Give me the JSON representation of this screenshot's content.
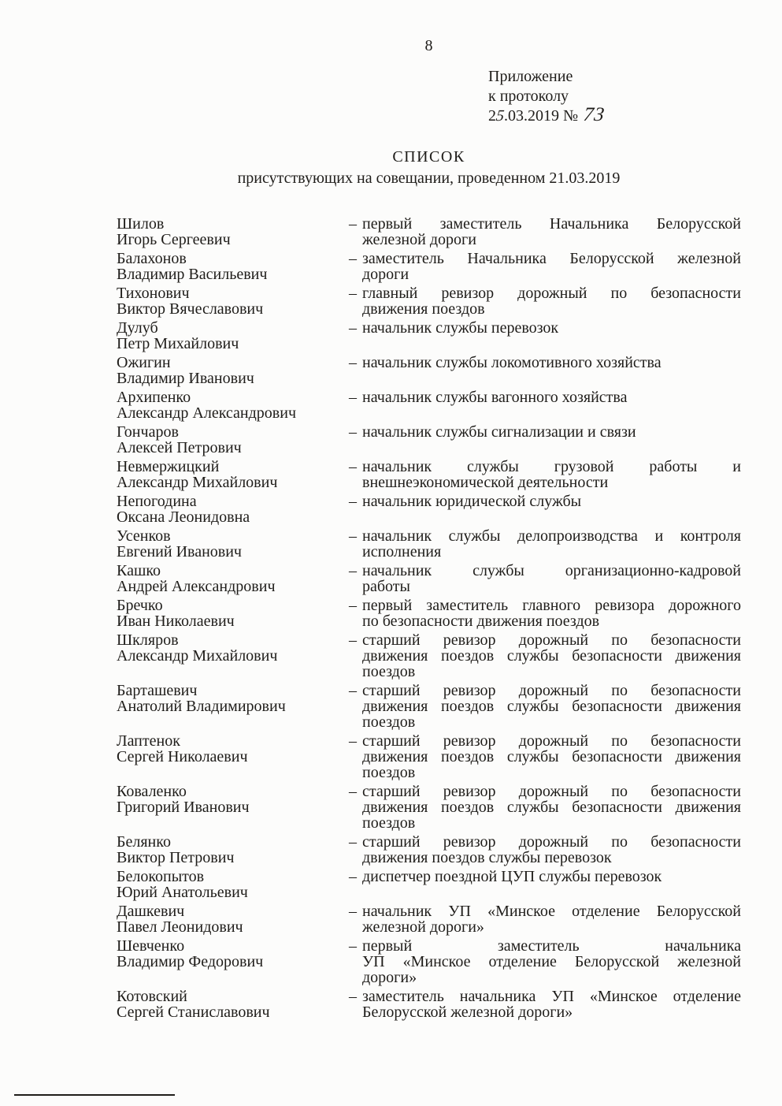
{
  "ui": {
    "paper_color": "#fcfcfb",
    "ink_color": "#1f1d1a",
    "list_dash": "–"
  },
  "page": {
    "number": "8",
    "annotation": {
      "line1": "Приложение",
      "line2": "к протоколу",
      "date_prefix": "2",
      "date_handwritten_digit": "5",
      "date_rest": ".03.2019 №",
      "protocol_number_handwritten": "73"
    },
    "title": "СПИСОК",
    "subtitle": "присутствующих на совещании, проведенном 21.03.2019"
  },
  "attendees": [
    {
      "surname": "Шилов",
      "given_names": "Игорь Сергеевич",
      "position_lines": [
        "первый заместитель Начальника Белорусской",
        "железной дороги"
      ]
    },
    {
      "surname": "Балахонов",
      "given_names": "Владимир Васильевич",
      "position_lines": [
        "заместитель Начальника Белорусской железной",
        "дороги"
      ]
    },
    {
      "surname": "Тихонович",
      "given_names": "Виктор Вячеславович",
      "position_lines": [
        "главный ревизор дорожный по безопасности",
        "движения поездов"
      ]
    },
    {
      "surname": "Дулуб",
      "given_names": "Петр Михайлович",
      "position_lines": [
        "начальник службы перевозок"
      ]
    },
    {
      "surname": "Ожигин",
      "given_names": "Владимир Иванович",
      "position_lines": [
        "начальник службы локомотивного хозяйства"
      ]
    },
    {
      "surname": "Архипенко",
      "given_names": "Александр Александрович",
      "position_lines": [
        "начальник службы вагонного хозяйства"
      ]
    },
    {
      "surname": "Гончаров",
      "given_names": "Алексей Петрович",
      "position_lines": [
        "начальник службы сигнализации и связи"
      ]
    },
    {
      "surname": "Невмержицкий",
      "given_names": "Александр Михайлович",
      "position_lines": [
        "начальник службы грузовой работы и",
        "внешнеэкономической деятельности"
      ]
    },
    {
      "surname": "Непогодина",
      "given_names": "Оксана Леонидовна",
      "position_lines": [
        "начальник юридической службы"
      ]
    },
    {
      "surname": "Усенков",
      "given_names": "Евгений Иванович",
      "position_lines": [
        "начальник службы делопроизводства и контроля",
        "исполнения"
      ]
    },
    {
      "surname": "Кашко",
      "given_names": "Андрей Александрович",
      "position_lines": [
        "начальник службы организационно-кадровой",
        "работы"
      ]
    },
    {
      "surname": "Бречко",
      "given_names": "Иван Николаевич",
      "position_lines": [
        "первый заместитель главного ревизора дорожного",
        "по безопасности движения поездов"
      ]
    },
    {
      "surname": "Шкляров",
      "given_names": "Александр Михайлович",
      "position_lines": [
        "старший ревизор дорожный по безопасности",
        "движения поездов службы безопасности движения",
        "поездов"
      ]
    },
    {
      "surname": "Барташевич",
      "given_names": "Анатолий Владимирович",
      "position_lines": [
        "старший ревизор дорожный по безопасности",
        "движения поездов службы безопасности движения",
        "поездов"
      ]
    },
    {
      "surname": "Лаптенок",
      "given_names": "Сергей Николаевич",
      "position_lines": [
        "старший ревизор дорожный по безопасности",
        "движения поездов службы безопасности движения",
        "поездов"
      ]
    },
    {
      "surname": "Коваленко",
      "given_names": "Григорий Иванович",
      "position_lines": [
        "старший ревизор дорожный по безопасности",
        "движения поездов службы безопасности движения",
        "поездов"
      ]
    },
    {
      "surname": "Белянко",
      "given_names": "Виктор Петрович",
      "position_lines": [
        "старший ревизор дорожный по безопасности",
        "движения поездов службы перевозок"
      ]
    },
    {
      "surname": "Белокопытов",
      "given_names": "Юрий Анатольевич",
      "position_lines": [
        "диспетчер поездной ЦУП службы перевозок"
      ]
    },
    {
      "surname": "Дашкевич",
      "given_names": "Павел Леонидович",
      "position_lines": [
        "начальник УП «Минское отделение Белорусской",
        "железной дороги»"
      ]
    },
    {
      "surname": "Шевченко",
      "given_names": "Владимир Федорович",
      "position_lines": [
        "первый заместитель начальника",
        "УП «Минское отделение Белорусской железной",
        "дороги»"
      ]
    },
    {
      "surname": "Котовский",
      "given_names": "Сергей Станиславович",
      "position_lines": [
        "заместитель начальника УП «Минское отделение",
        "Белорусской железной дороги»"
      ]
    }
  ]
}
